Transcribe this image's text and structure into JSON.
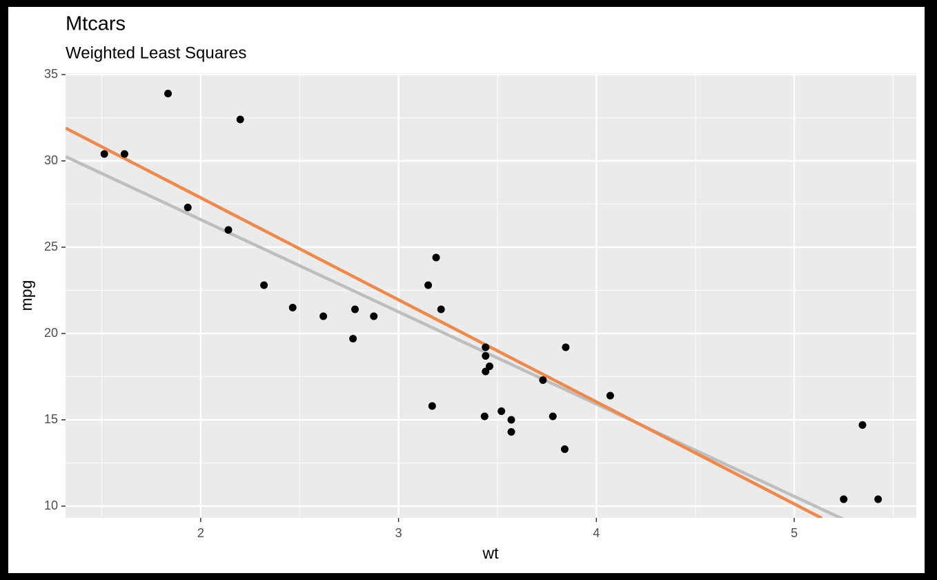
{
  "chart_data": {
    "type": "scatter",
    "title": "Mtcars",
    "subtitle": "Weighted Least Squares",
    "x_label": "wt",
    "y_label": "mpg",
    "xlim": [
      1.317,
      5.617
    ],
    "ylim": [
      9.32,
      35.08
    ],
    "xticks": [
      2,
      3,
      4,
      5
    ],
    "yticks": [
      10,
      15,
      20,
      25,
      30,
      35
    ],
    "x_minor_grid": [
      1.5,
      2.5,
      3.5,
      4.5,
      5.5
    ],
    "y_minor_grid": [
      12.5,
      17.5,
      22.5,
      27.5,
      32.5
    ],
    "grid": true,
    "point_color": "#000000",
    "x": [
      2.62,
      2.875,
      2.32,
      3.215,
      3.44,
      3.46,
      3.57,
      3.19,
      3.15,
      3.44,
      3.44,
      4.07,
      3.73,
      3.78,
      5.25,
      5.424,
      5.345,
      2.2,
      1.615,
      1.835,
      2.465,
      3.52,
      3.435,
      3.84,
      3.845,
      1.935,
      2.14,
      1.513,
      3.17,
      2.77,
      3.57,
      2.78
    ],
    "values": [
      21.0,
      21.0,
      22.8,
      21.4,
      18.7,
      18.1,
      14.3,
      24.4,
      22.8,
      19.2,
      17.8,
      16.4,
      17.3,
      15.2,
      10.4,
      10.4,
      14.7,
      32.4,
      30.4,
      33.9,
      21.5,
      15.5,
      15.2,
      13.3,
      19.2,
      27.3,
      26.0,
      30.4,
      15.8,
      19.7,
      15.0,
      21.4
    ],
    "lines": [
      {
        "color": "#bebebe",
        "x": [
          1.317,
          5.25
        ],
        "values": [
          30.25,
          9.23
        ]
      },
      {
        "color": "#f0884a",
        "x": [
          1.317,
          5.14
        ],
        "values": [
          31.9,
          9.3
        ]
      }
    ]
  }
}
